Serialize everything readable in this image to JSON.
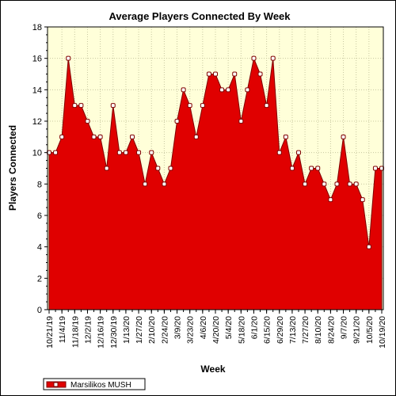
{
  "chart_data": {
    "type": "area",
    "title": "Average Players Connected By Week",
    "xlabel": "Week",
    "ylabel": "Players Connected",
    "ylim": [
      0,
      18
    ],
    "y_ticks": [
      0,
      2,
      4,
      6,
      8,
      10,
      12,
      14,
      16,
      18
    ],
    "grid": true,
    "legend_position": "bottom-left",
    "colors": {
      "plot_background": "#ffffd9",
      "fill": "#e00000",
      "line": "#800000",
      "marker_fill": "#ffffff",
      "marker_stroke": "#800000",
      "grid": "#c8c8a0"
    },
    "x": [
      "10/21/19",
      "10/28/19",
      "11/4/19",
      "11/11/19",
      "11/18/19",
      "11/25/19",
      "12/2/19",
      "12/9/19",
      "12/16/19",
      "12/23/19",
      "12/30/19",
      "1/6/20",
      "1/13/20",
      "1/20/20",
      "1/27/20",
      "2/3/20",
      "2/10/20",
      "2/17/20",
      "2/24/20",
      "3/2/20",
      "3/9/20",
      "3/16/20",
      "3/23/20",
      "3/30/20",
      "4/6/20",
      "4/13/20",
      "4/20/20",
      "4/27/20",
      "5/4/20",
      "5/11/20",
      "5/18/20",
      "5/25/20",
      "6/1/20",
      "6/8/20",
      "6/15/20",
      "6/22/20",
      "6/29/20",
      "7/6/20",
      "7/13/20",
      "7/20/20",
      "7/27/20",
      "8/3/20",
      "8/10/20",
      "8/17/20",
      "8/24/20",
      "8/31/20",
      "9/7/20",
      "9/14/20",
      "9/21/20",
      "9/28/20",
      "10/5/20",
      "10/12/20",
      "10/19/20"
    ],
    "x_tick_labels": [
      "10/21/19",
      "11/4/19",
      "11/18/19",
      "12/2/19",
      "12/16/19",
      "12/30/19",
      "1/13/20",
      "1/27/20",
      "2/10/20",
      "2/24/20",
      "3/9/20",
      "3/23/20",
      "4/6/20",
      "4/20/20",
      "5/4/20",
      "5/18/20",
      "6/1/20",
      "6/15/20",
      "6/29/20",
      "7/13/20",
      "7/27/20",
      "8/10/20",
      "8/24/20",
      "9/7/20",
      "9/21/20",
      "10/5/20",
      "10/19/20"
    ],
    "series": [
      {
        "name": "Marsilikos MUSH",
        "values": [
          10,
          10,
          11,
          16,
          13,
          13,
          12,
          11,
          11,
          9,
          13,
          10,
          10,
          11,
          10,
          8,
          10,
          9,
          8,
          9,
          12,
          14,
          13,
          11,
          13,
          15,
          15,
          14,
          14,
          15,
          12,
          14,
          16,
          15,
          13,
          16,
          10,
          11,
          9,
          10,
          8,
          9,
          9,
          8,
          7,
          8,
          11,
          8,
          8,
          7,
          4,
          9,
          9
        ]
      }
    ]
  }
}
